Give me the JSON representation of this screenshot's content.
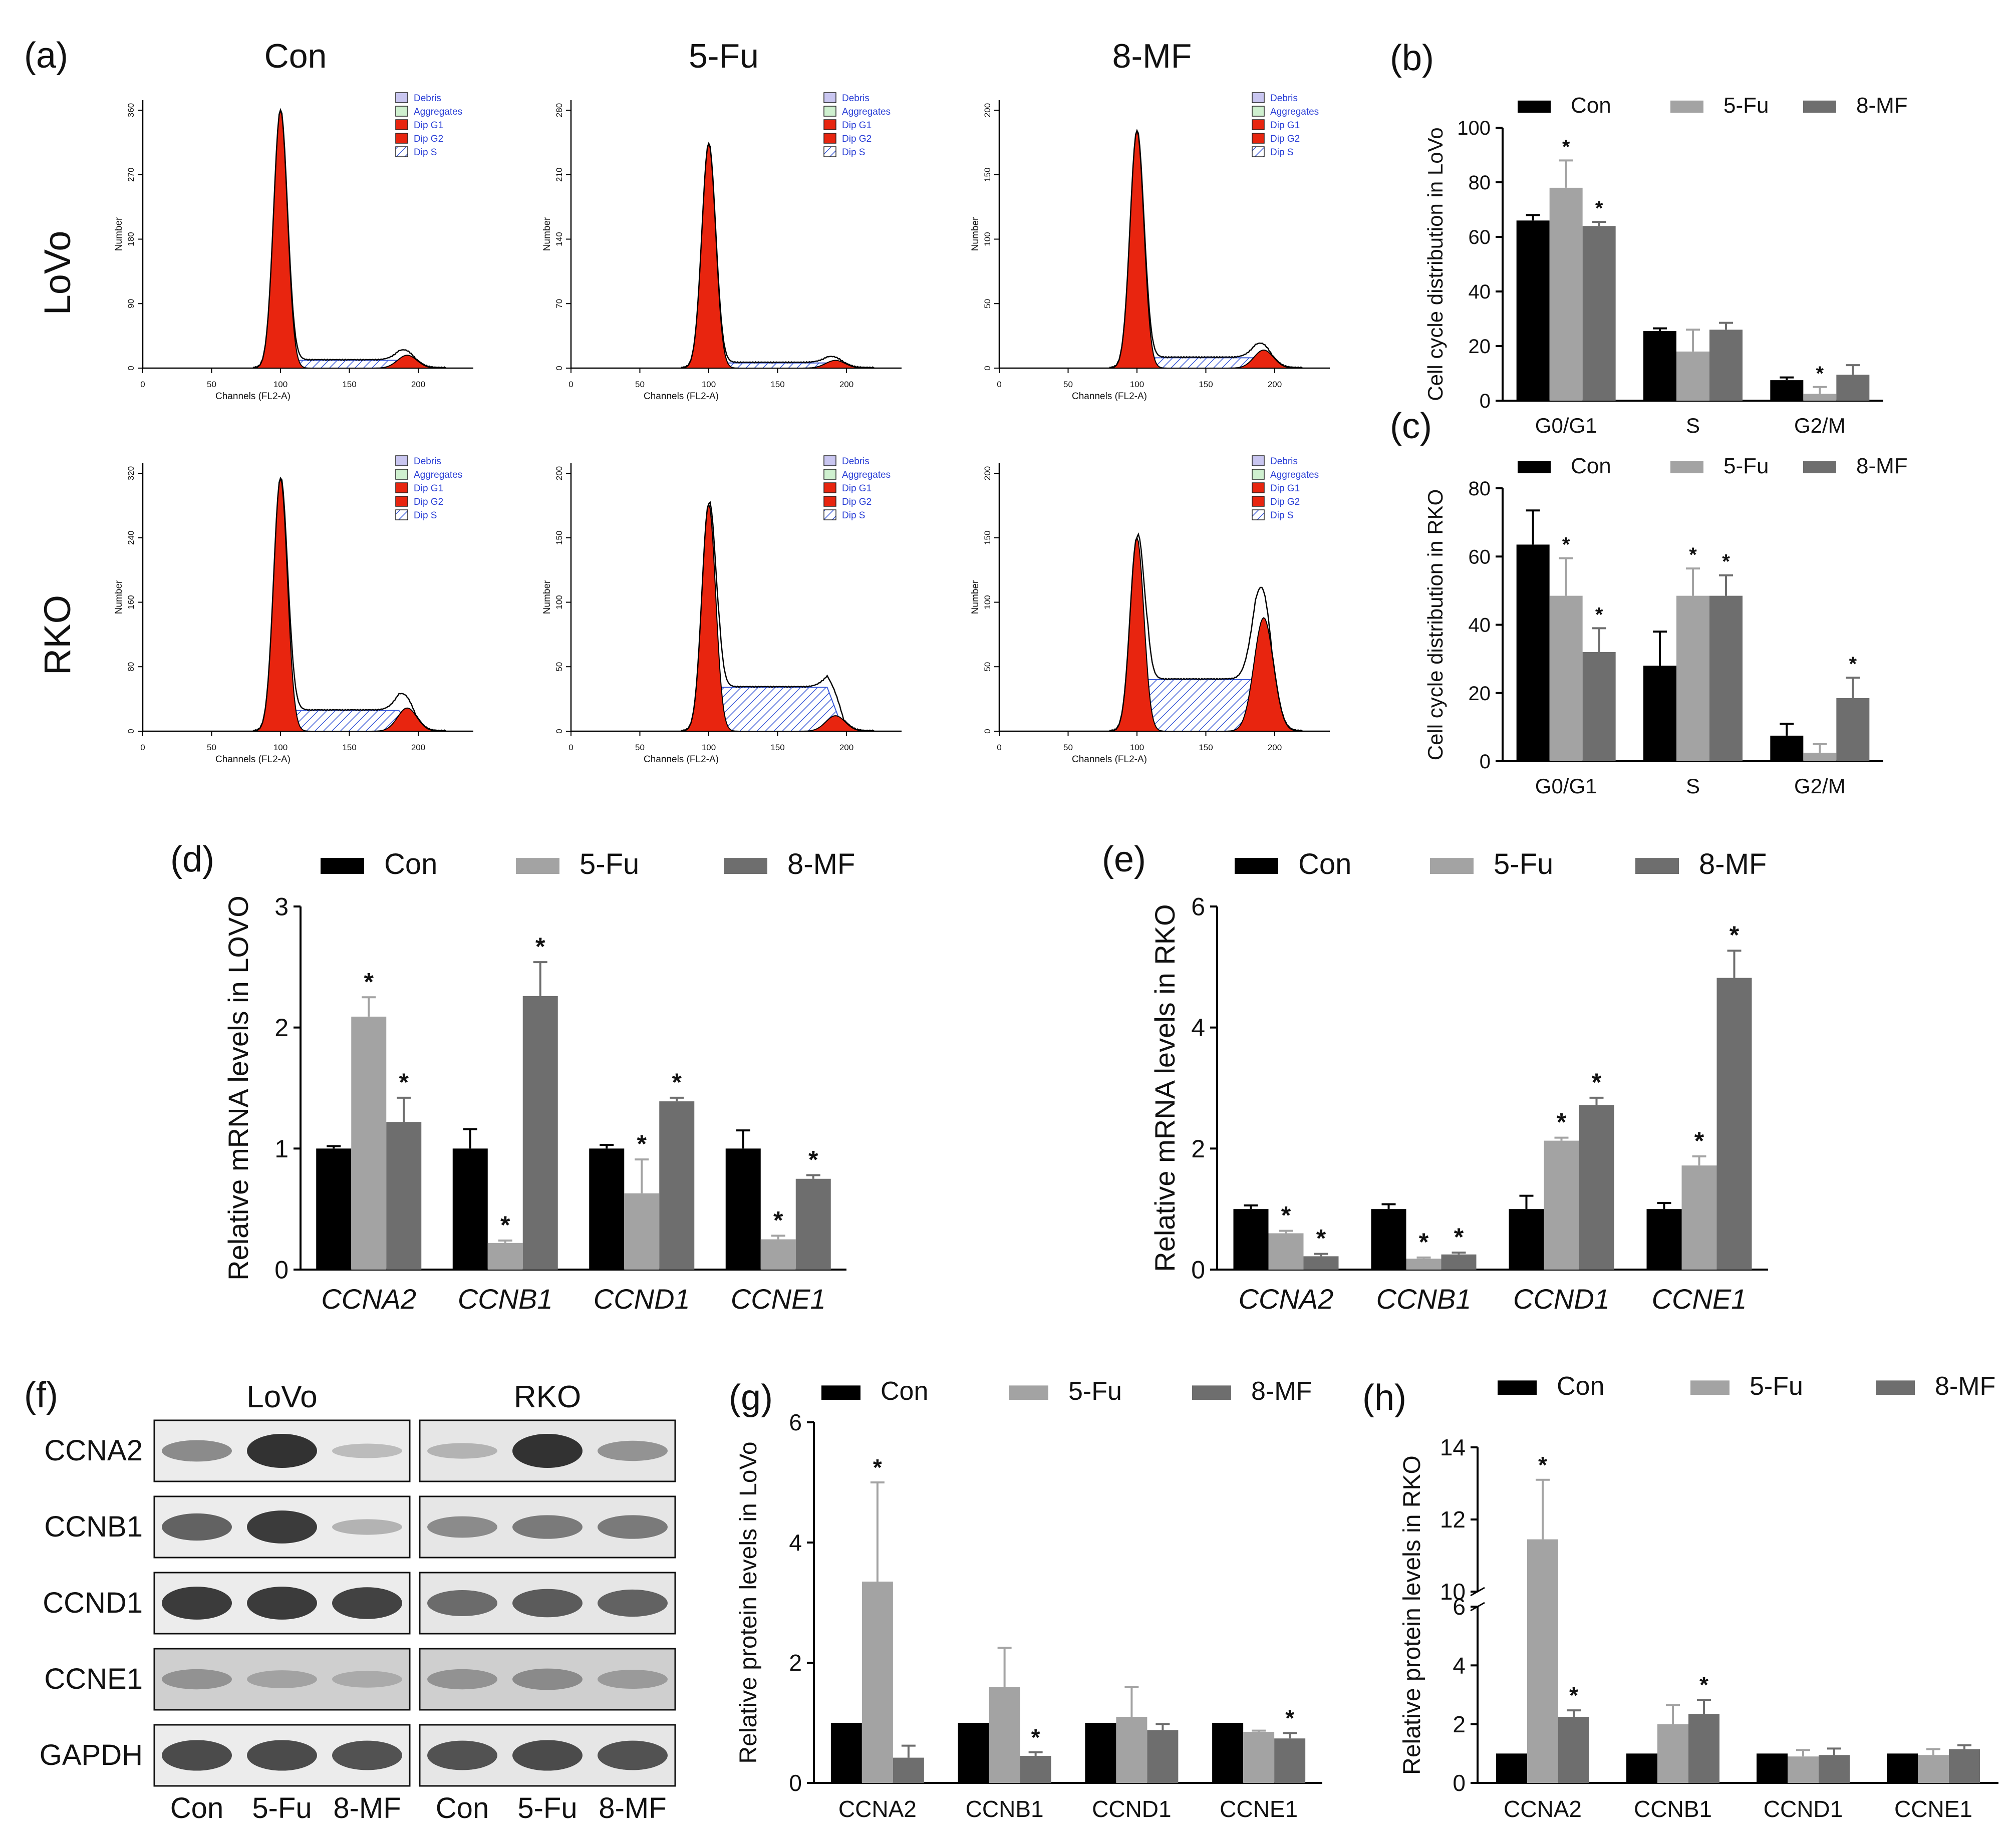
{
  "panel_labels": [
    "(a)",
    "(b)",
    "(c)",
    "(d)",
    "(e)",
    "(f)",
    "(g)",
    "(h)"
  ],
  "groups": [
    "Con",
    "5-Fu",
    "8-MF"
  ],
  "colors": {
    "Con": "#000000",
    "5-Fu": "#a3a3a3",
    "8-MF": "#6e6e6e",
    "g1": "#e8250f",
    "hatch": "#3c5bd8",
    "legend_text": "#2a3fd6"
  },
  "flow": {
    "rows": [
      "LoVo",
      "RKO"
    ],
    "cols": [
      "Con",
      "5-Fu",
      "8-MF"
    ],
    "x_label": "Channels (FL2-A)",
    "y_label": "Number",
    "x_ticks": [
      "0",
      "50",
      "100",
      "150",
      "200"
    ],
    "legend": [
      "Debris",
      "Aggregates",
      "Dip G1",
      "Dip G2",
      "Dip S"
    ],
    "y_ticks": [
      [
        [
          "0",
          "90",
          "180",
          "270",
          "360"
        ],
        [
          "0",
          "70",
          "140",
          "210",
          "280"
        ],
        [
          "0",
          "50",
          "100",
          "150",
          "200"
        ]
      ],
      [
        [
          "0",
          "80",
          "160",
          "240",
          "320"
        ],
        [
          "0",
          "50",
          "100",
          "150",
          "200"
        ],
        [
          "0",
          "50",
          "100",
          "150",
          "200"
        ]
      ]
    ]
  },
  "western": {
    "cell_lines": [
      "LoVo",
      "RKO"
    ],
    "proteins": [
      "CCNA2",
      "CCNB1",
      "CCND1",
      "CCNE1",
      "GAPDH"
    ],
    "lanes": [
      "Con",
      "5-Fu",
      "8-MF",
      "Con",
      "5-Fu",
      "8-MF"
    ],
    "intensity": [
      [
        0.45,
        1.0,
        0.15,
        0.2,
        1.0,
        0.4
      ],
      [
        0.7,
        0.95,
        0.2,
        0.45,
        0.55,
        0.55
      ],
      [
        0.95,
        0.95,
        0.9,
        0.65,
        0.75,
        0.7
      ],
      [
        0.4,
        0.3,
        0.25,
        0.4,
        0.45,
        0.35
      ],
      [
        0.85,
        0.85,
        0.8,
        0.8,
        0.85,
        0.8
      ]
    ]
  },
  "chart_data": [
    {
      "id": "b",
      "type": "bar",
      "title": "(b)",
      "categories": [
        "G0/G1",
        "S",
        "G2/M"
      ],
      "ylabel": "Cell cycle distribution in LoVo",
      "xlabel": "",
      "ylim": [
        0,
        100
      ],
      "yticks": [
        "0",
        "20",
        "40",
        "60",
        "80",
        "100"
      ],
      "series": [
        {
          "name": "Con",
          "values": [
            66,
            25.5,
            7.5
          ],
          "errors": [
            2,
            1,
            1
          ],
          "star": [
            false,
            false,
            false
          ]
        },
        {
          "name": "5-Fu",
          "values": [
            78,
            18,
            2.5
          ],
          "errors": [
            10,
            8,
            2.5
          ],
          "star": [
            true,
            false,
            true
          ]
        },
        {
          "name": "8-MF",
          "values": [
            64,
            26,
            9.5
          ],
          "errors": [
            1.5,
            2.5,
            3.5
          ],
          "star": [
            true,
            false,
            false
          ]
        }
      ],
      "star_label": "*",
      "italic_categories": false
    },
    {
      "id": "c",
      "type": "bar",
      "title": "(c)",
      "categories": [
        "G0/G1",
        "S",
        "G2/M"
      ],
      "ylabel": "Cell cycle distribution in RKO",
      "xlabel": "",
      "ylim": [
        0,
        80
      ],
      "yticks": [
        "0",
        "20",
        "40",
        "60",
        "80"
      ],
      "series": [
        {
          "name": "Con",
          "values": [
            63.5,
            28,
            7.5
          ],
          "errors": [
            10,
            10,
            3.5
          ],
          "star": [
            false,
            false,
            false
          ]
        },
        {
          "name": "5-Fu",
          "values": [
            48.5,
            48.5,
            2.5
          ],
          "errors": [
            11,
            8,
            2.5
          ],
          "star": [
            true,
            true,
            false
          ]
        },
        {
          "name": "8-MF",
          "values": [
            32,
            48.5,
            18.5
          ],
          "errors": [
            7,
            6,
            6
          ],
          "star": [
            true,
            true,
            true
          ]
        }
      ],
      "star_label": "*",
      "italic_categories": false
    },
    {
      "id": "d",
      "type": "bar",
      "title": "(d)",
      "categories": [
        "CCNA2",
        "CCNB1",
        "CCND1",
        "CCNE1"
      ],
      "ylabel": "Relative mRNA levels in LOVO",
      "xlabel": "",
      "ylim": [
        0,
        3
      ],
      "yticks": [
        "0",
        "1",
        "2",
        "3"
      ],
      "series": [
        {
          "name": "Con",
          "values": [
            1.0,
            1.0,
            1.0,
            1.0
          ],
          "errors": [
            0.02,
            0.16,
            0.03,
            0.15
          ],
          "star": [
            false,
            false,
            false,
            false
          ]
        },
        {
          "name": "5-Fu",
          "values": [
            2.09,
            0.22,
            0.63,
            0.25
          ],
          "errors": [
            0.16,
            0.02,
            0.28,
            0.03
          ],
          "star": [
            true,
            true,
            true,
            true
          ]
        },
        {
          "name": "8-MF",
          "values": [
            1.22,
            2.26,
            1.39,
            0.75
          ],
          "errors": [
            0.2,
            0.28,
            0.03,
            0.03
          ],
          "star": [
            true,
            true,
            true,
            true
          ]
        }
      ],
      "star_label": "*",
      "italic_categories": true
    },
    {
      "id": "e",
      "type": "bar",
      "title": "(e)",
      "categories": [
        "CCNA2",
        "CCNB1",
        "CCND1",
        "CCNE1"
      ],
      "ylabel": "Relative mRNA levels in RKO",
      "xlabel": "",
      "ylim": [
        0,
        6
      ],
      "yticks": [
        "0",
        "2",
        "4",
        "6"
      ],
      "series": [
        {
          "name": "Con",
          "values": [
            1.0,
            1.0,
            1.0,
            1.0
          ],
          "errors": [
            0.06,
            0.08,
            0.22,
            0.1
          ],
          "star": [
            false,
            false,
            false,
            false
          ]
        },
        {
          "name": "5-Fu",
          "values": [
            0.6,
            0.18,
            2.13,
            1.72
          ],
          "errors": [
            0.04,
            0.02,
            0.05,
            0.15
          ],
          "star": [
            true,
            true,
            true,
            true
          ]
        },
        {
          "name": "8-MF",
          "values": [
            0.22,
            0.25,
            2.72,
            4.82
          ],
          "errors": [
            0.04,
            0.03,
            0.12,
            0.45
          ],
          "star": [
            true,
            true,
            true,
            true
          ]
        }
      ],
      "star_label": "*",
      "italic_categories": true
    },
    {
      "id": "g",
      "type": "bar",
      "title": "(g)",
      "categories": [
        "CCNA2",
        "CCNB1",
        "CCND1",
        "CCNE1"
      ],
      "ylabel": "Relative protein levels in LoVo",
      "xlabel": "",
      "ylim": [
        0,
        6
      ],
      "yticks": [
        "0",
        "2",
        "4",
        "6"
      ],
      "series": [
        {
          "name": "Con",
          "values": [
            1.0,
            1.0,
            1.0,
            1.0
          ],
          "errors": [
            0,
            0,
            0,
            0
          ],
          "star": [
            false,
            false,
            false,
            false
          ]
        },
        {
          "name": "5-Fu",
          "values": [
            3.35,
            1.6,
            1.1,
            0.85
          ],
          "errors": [
            1.65,
            0.65,
            0.5,
            0.02
          ],
          "star": [
            true,
            false,
            false,
            false
          ]
        },
        {
          "name": "8-MF",
          "values": [
            0.42,
            0.45,
            0.88,
            0.74
          ],
          "errors": [
            0.2,
            0.06,
            0.1,
            0.09
          ],
          "star": [
            false,
            true,
            false,
            true
          ]
        }
      ],
      "star_label": "*",
      "italic_categories": false
    },
    {
      "id": "h",
      "type": "bar",
      "title": "(h)",
      "categories": [
        "CCNA2",
        "CCNB1",
        "CCND1",
        "CCNE1"
      ],
      "ylabel": "Relative protein levels in RKO",
      "xlabel": "",
      "ylim": [
        0,
        14
      ],
      "yticks": [
        "0",
        "2",
        "4",
        "6",
        "10",
        "12",
        "14"
      ],
      "axis_break": [
        6,
        10
      ],
      "series": [
        {
          "name": "Con",
          "values": [
            1.0,
            1.0,
            1.0,
            1.0
          ],
          "errors": [
            0,
            0,
            0,
            0
          ],
          "star": [
            false,
            false,
            false,
            false
          ]
        },
        {
          "name": "5-Fu",
          "values": [
            11.45,
            2.0,
            0.9,
            0.95
          ],
          "errors": [
            1.65,
            0.65,
            0.22,
            0.2
          ],
          "star": [
            true,
            false,
            false,
            false
          ]
        },
        {
          "name": "8-MF",
          "values": [
            2.25,
            2.35,
            0.95,
            1.15
          ],
          "errors": [
            0.22,
            0.48,
            0.22,
            0.13
          ],
          "star": [
            true,
            true,
            false,
            false
          ]
        }
      ],
      "star_label": "*",
      "italic_categories": false
    }
  ]
}
